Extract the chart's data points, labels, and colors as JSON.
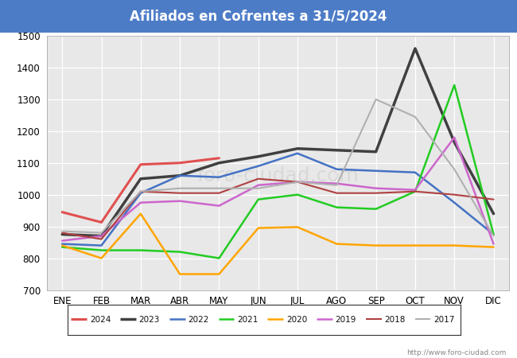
{
  "title": "Afiliados en Cofrentes a 31/5/2024",
  "title_bgcolor": "#4d7cc7",
  "title_fgcolor": "#ffffff",
  "months": [
    "ENE",
    "FEB",
    "MAR",
    "ABR",
    "MAY",
    "JUN",
    "JUL",
    "AGO",
    "SEP",
    "OCT",
    "NOV",
    "DIC"
  ],
  "ylim": [
    700,
    1500
  ],
  "yticks": [
    700,
    800,
    900,
    1000,
    1100,
    1200,
    1300,
    1400,
    1500
  ],
  "url": "http://www.foro-ciudad.com",
  "series": [
    {
      "year": "2024",
      "color": "#e05050",
      "linewidth": 2.2,
      "data": [
        945,
        913,
        1095,
        1100,
        1115,
        null,
        null,
        null,
        null,
        null,
        null,
        null
      ]
    },
    {
      "year": "2023",
      "color": "#404040",
      "linewidth": 2.5,
      "data": [
        875,
        870,
        1050,
        1060,
        1100,
        1120,
        1145,
        1140,
        1135,
        1460,
        1165,
        940
      ]
    },
    {
      "year": "2022",
      "color": "#4472c4",
      "linewidth": 1.8,
      "data": [
        845,
        840,
        1005,
        1060,
        1055,
        1090,
        1130,
        1080,
        1075,
        1070,
        975,
        875
      ]
    },
    {
      "year": "2021",
      "color": "#22cc22",
      "linewidth": 1.8,
      "data": [
        835,
        825,
        825,
        820,
        800,
        985,
        1000,
        960,
        955,
        1010,
        1345,
        875
      ]
    },
    {
      "year": "2020",
      "color": "#ffa500",
      "linewidth": 1.8,
      "data": [
        840,
        800,
        940,
        750,
        750,
        895,
        898,
        845,
        840,
        840,
        840,
        835
      ]
    },
    {
      "year": "2019",
      "color": "#cc66cc",
      "linewidth": 1.8,
      "data": [
        855,
        870,
        975,
        980,
        965,
        1030,
        1040,
        1035,
        1020,
        1015,
        1180,
        845
      ]
    },
    {
      "year": "2018",
      "color": "#b04040",
      "linewidth": 1.5,
      "data": [
        880,
        860,
        1010,
        1005,
        1005,
        1050,
        1040,
        1005,
        1005,
        1010,
        1000,
        985
      ]
    },
    {
      "year": "2017",
      "color": "#b0b0b0",
      "linewidth": 1.5,
      "data": [
        885,
        880,
        1010,
        1020,
        1020,
        1020,
        1040,
        1030,
        1300,
        1245,
        1080,
        870
      ]
    }
  ]
}
